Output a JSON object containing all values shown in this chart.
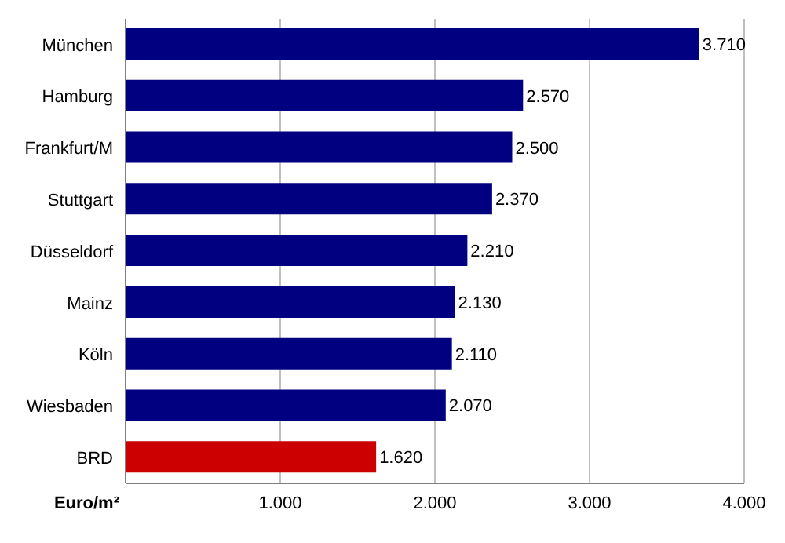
{
  "chart_data": {
    "type": "bar",
    "orientation": "horizontal",
    "xlabel": "Euro/m²",
    "categories": [
      "München",
      "Hamburg",
      "Frankfurt/M",
      "Stuttgart",
      "Düsseldorf",
      "Mainz",
      "Köln",
      "Wiesbaden",
      "BRD"
    ],
    "values": [
      3710,
      2570,
      2500,
      2370,
      2210,
      2130,
      2110,
      2070,
      1620
    ],
    "colors": [
      "#000080",
      "#000080",
      "#000080",
      "#000080",
      "#000080",
      "#000080",
      "#000080",
      "#000080",
      "#cc0000"
    ],
    "value_labels": [
      "3.710",
      "2.570",
      "2.500",
      "2.370",
      "2.210",
      "2.130",
      "2.110",
      "2.070",
      "1.620"
    ],
    "xlim": [
      0,
      4000
    ],
    "xticks": [
      {
        "value": 0,
        "label": null
      },
      {
        "value": 1000,
        "label": "1.000"
      },
      {
        "value": 2000,
        "label": "2.000"
      },
      {
        "value": 3000,
        "label": "3.000"
      },
      {
        "value": 4000,
        "label": "4.000"
      }
    ],
    "grid": "x"
  }
}
